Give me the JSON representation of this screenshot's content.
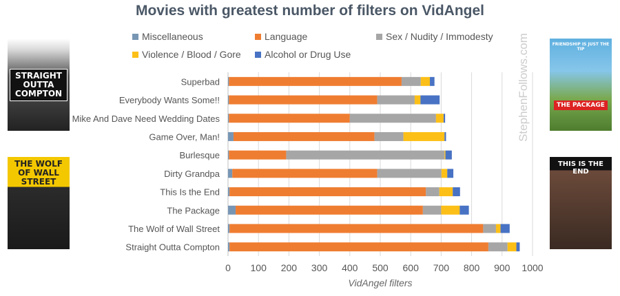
{
  "chart_data": {
    "type": "bar",
    "orientation": "horizontal",
    "stacked": true,
    "title": "Movies with greatest number of filters on VidAngel",
    "xlabel": "VidAngel filters",
    "ylabel": "",
    "xlim": [
      0,
      1000
    ],
    "xticks": [
      0,
      100,
      200,
      300,
      400,
      500,
      600,
      700,
      800,
      900,
      1000
    ],
    "grid": true,
    "legend_position": "top",
    "categories": [
      "Superbad",
      "Everybody Wants Some!!",
      "Mike And Dave Need Wedding Dates",
      "Game Over, Man!",
      "Burlesque",
      "Dirty Grandpa",
      "This Is the End",
      "The Package",
      "The Wolf of Wall Street",
      "Straight Outta Compton"
    ],
    "series": [
      {
        "name": "Miscellaneous",
        "color": "#7896b4",
        "values": [
          3,
          3,
          3,
          18,
          3,
          14,
          5,
          25,
          5,
          5
        ]
      },
      {
        "name": "Language",
        "color": "#ef7d31",
        "values": [
          567,
          487,
          397,
          463,
          188,
          476,
          645,
          615,
          833,
          850
        ]
      },
      {
        "name": "Sex / Nudity / Immodesty",
        "color": "#a6a6a6",
        "values": [
          63,
          123,
          283,
          95,
          520,
          211,
          44,
          60,
          42,
          63
        ]
      },
      {
        "name": "Violence / Blood / Gore",
        "color": "#fcbf17",
        "values": [
          30,
          19,
          25,
          135,
          3,
          19,
          44,
          61,
          15,
          29
        ]
      },
      {
        "name": "Alcohol or Drug Use",
        "color": "#4872c3",
        "values": [
          15,
          63,
          5,
          5,
          21,
          20,
          24,
          30,
          30,
          11
        ]
      }
    ]
  },
  "watermark": "StephenFollows.com",
  "posters": {
    "straight_outta_compton": "STRAIGHT OUTTA COMPTON",
    "wolf_of_wall_street": "THE WOLF OF WALL STREET",
    "the_package": "THE PACKAGE",
    "the_package_tagline": "FRIENDSHIP IS JUST THE TIP",
    "this_is_the_end": "THIS IS THE END"
  }
}
